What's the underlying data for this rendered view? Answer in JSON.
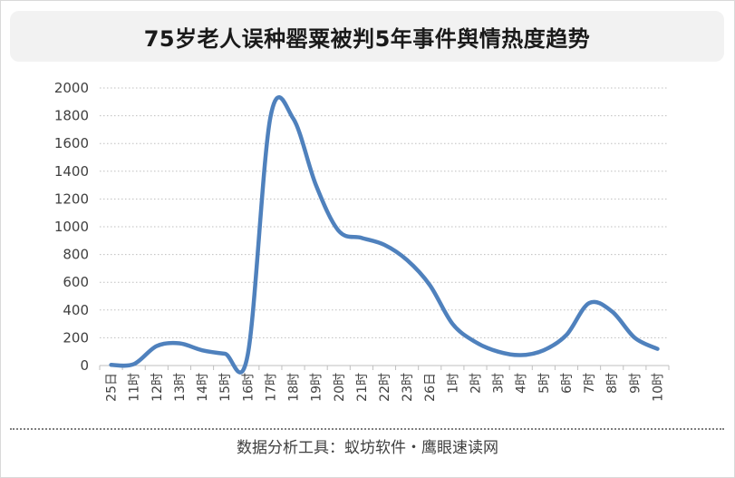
{
  "header": {
    "title": "75岁老人误种罂粟被判5年事件舆情热度趋势"
  },
  "footer": {
    "text": "数据分析工具：蚁坊软件・鹰眼速读网"
  },
  "chart_data": {
    "type": "line",
    "title": "75岁老人误种罂粟被判5年事件舆情热度趋势",
    "xlabel": "",
    "ylabel": "",
    "ylim": [
      0,
      2000
    ],
    "yticks": [
      0,
      200,
      400,
      600,
      800,
      1000,
      1200,
      1400,
      1600,
      1800,
      2000
    ],
    "grid": true,
    "line_color": "#4f81bd",
    "categories": [
      "25日",
      "11时",
      "12时",
      "13时",
      "14时",
      "15时",
      "16时",
      "17时",
      "18时",
      "19时",
      "20时",
      "21时",
      "22时",
      "23时",
      "26日",
      "1时",
      "2时",
      "3时",
      "4时",
      "5时",
      "6时",
      "7时",
      "8时",
      "9时",
      "10时"
    ],
    "series": [
      {
        "values": [
          5,
          10,
          140,
          160,
          110,
          85,
          75,
          1790,
          1780,
          1300,
          970,
          920,
          870,
          760,
          580,
          300,
          170,
          100,
          75,
          110,
          220,
          450,
          390,
          200,
          120
        ]
      }
    ]
  }
}
